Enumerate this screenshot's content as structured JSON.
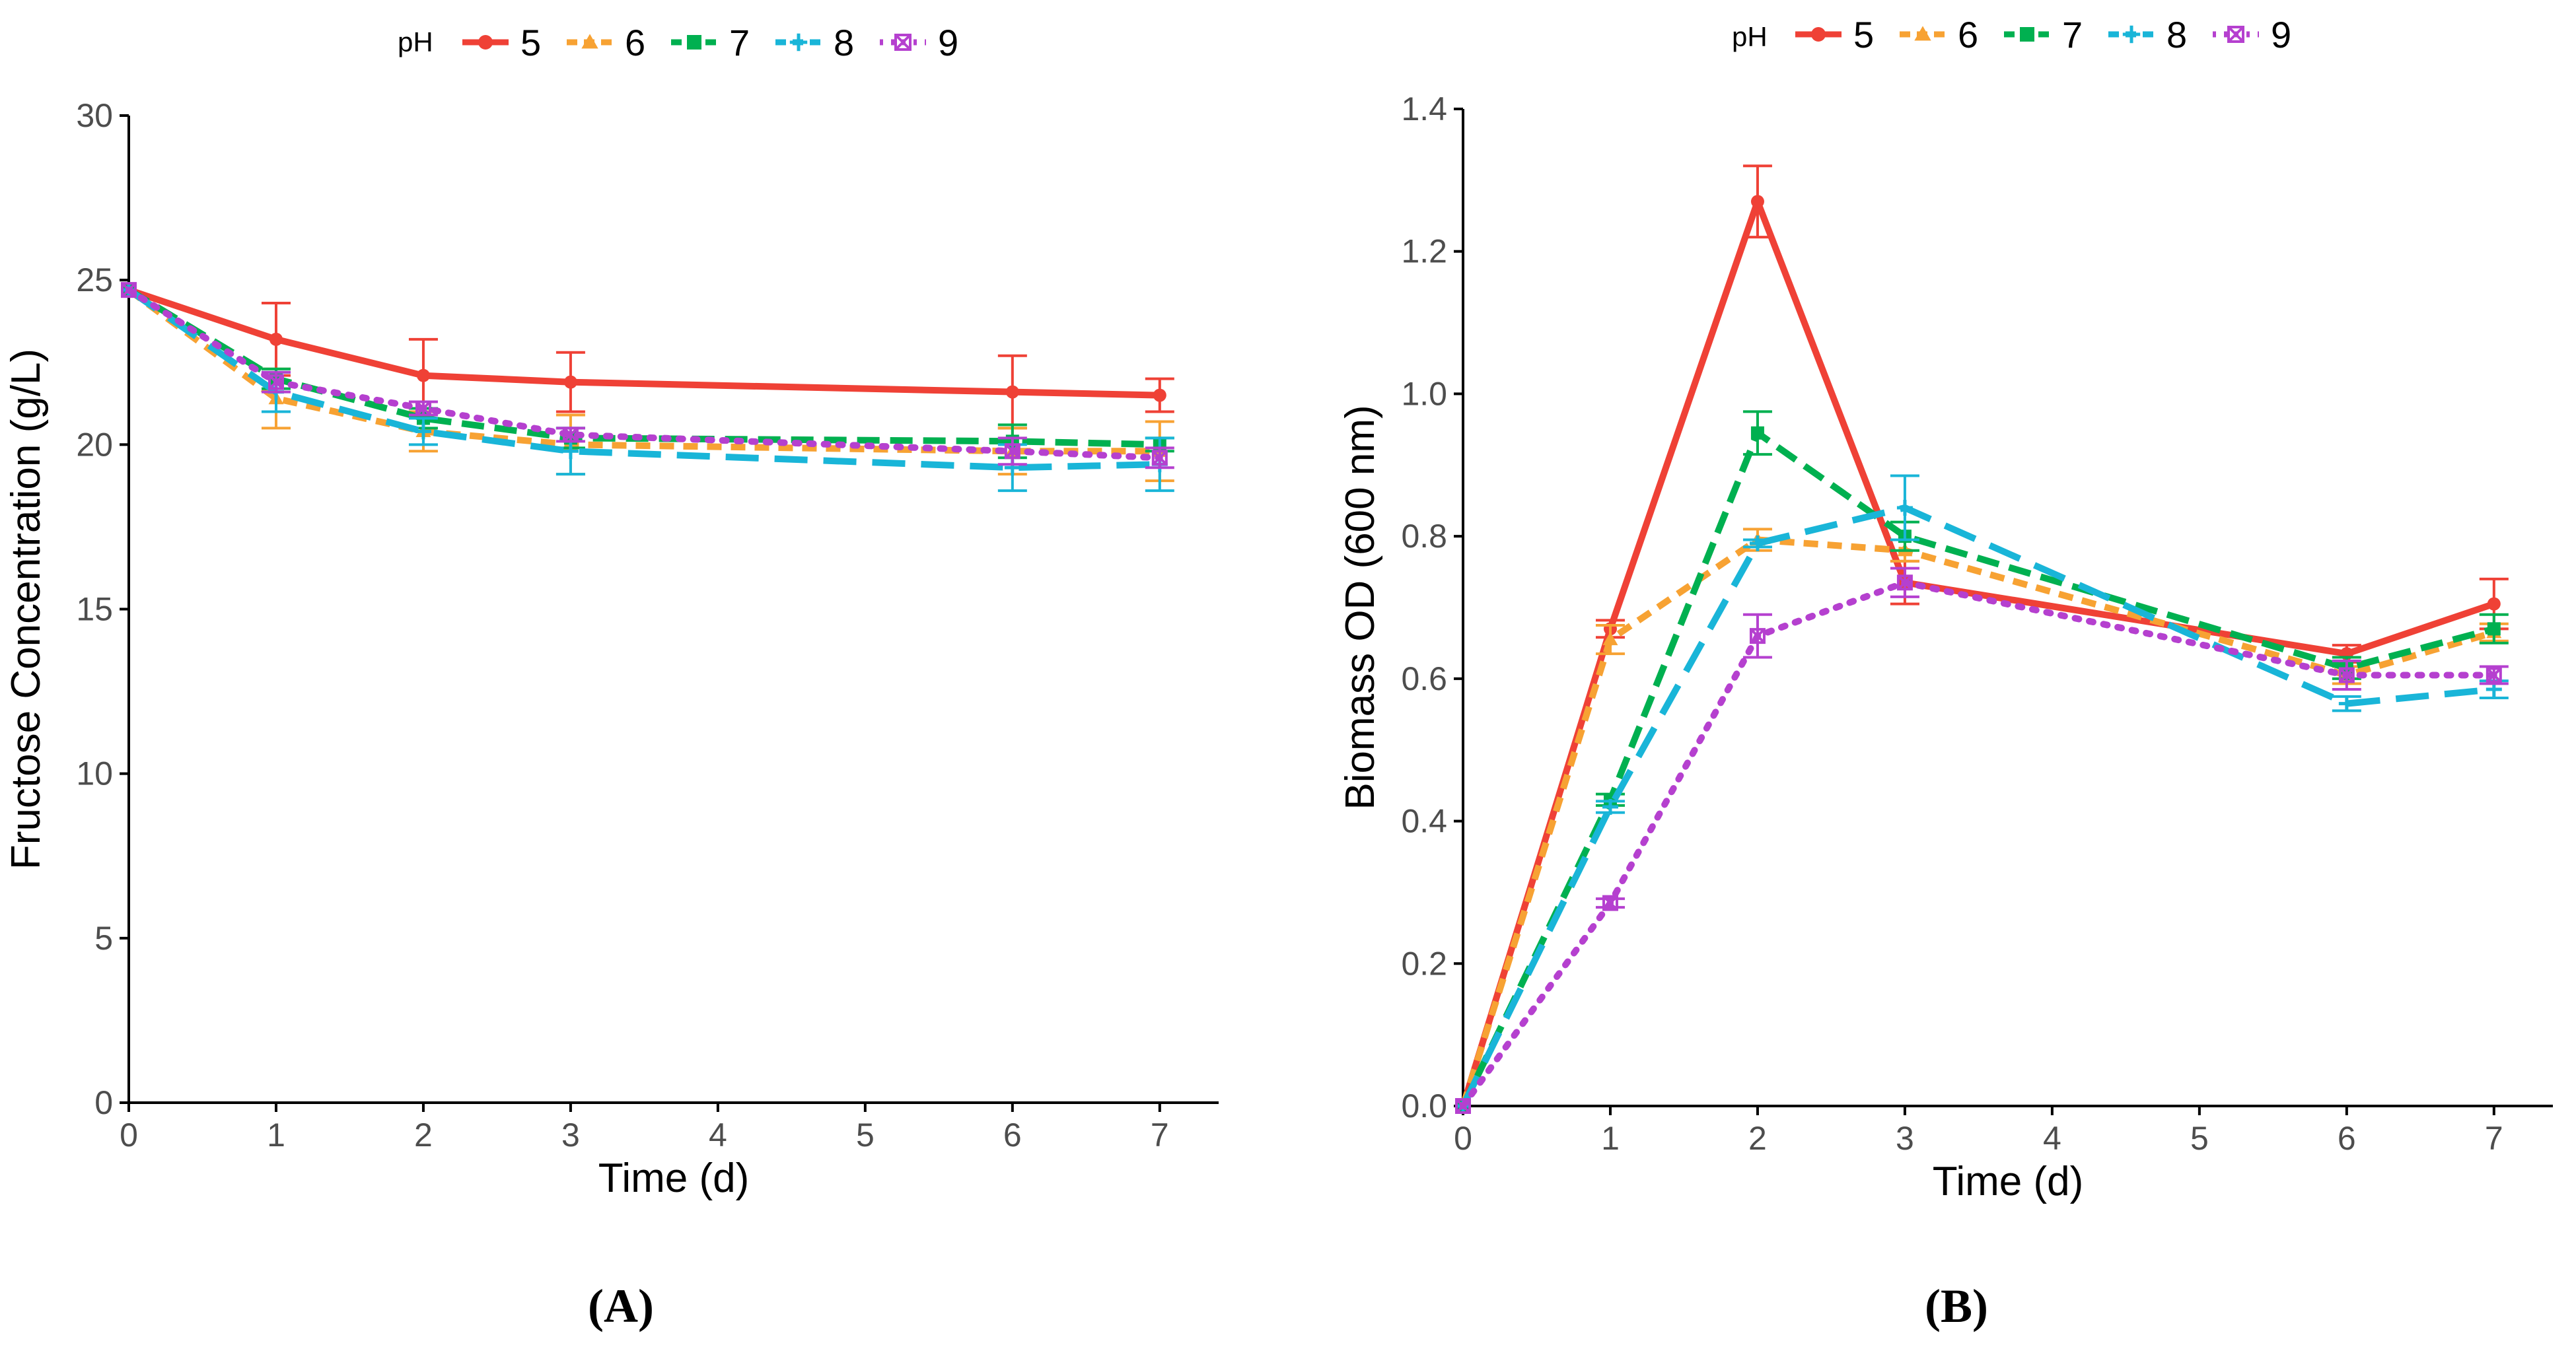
{
  "figure": {
    "panel_labels": [
      "(A)",
      "(B)"
    ]
  },
  "legend": {
    "title": "pH",
    "entries": [
      {
        "label": "5",
        "color": "#EF4136",
        "shape": "circle",
        "dash": "solid"
      },
      {
        "label": "6",
        "color": "#F7A233",
        "shape": "triangle",
        "dash": "short-dash"
      },
      {
        "label": "7",
        "color": "#00B050",
        "shape": "square",
        "dash": "dash"
      },
      {
        "label": "8",
        "color": "#19B5D8",
        "shape": "plus",
        "dash": "long-dash"
      },
      {
        "label": "9",
        "color": "#B540CF",
        "shape": "square-cross",
        "dash": "dotted"
      }
    ]
  },
  "chart_data": [
    {
      "type": "line",
      "panel": "A",
      "title": "",
      "xlabel": "Time (d)",
      "ylabel": "Fructose Concentration (g/L)",
      "xlim": [
        0,
        7.4
      ],
      "ylim": [
        0,
        30
      ],
      "xticks": [
        0,
        1,
        2,
        3,
        4,
        5,
        6,
        7
      ],
      "yticks": [
        0,
        5,
        10,
        15,
        20,
        25,
        30
      ],
      "x": [
        0,
        1,
        2,
        3,
        6,
        7
      ],
      "series": [
        {
          "name": "5",
          "values": [
            24.7,
            23.2,
            22.1,
            21.9,
            21.6,
            21.5
          ],
          "errors": [
            0.0,
            1.1,
            1.1,
            0.9,
            1.1,
            0.5
          ]
        },
        {
          "name": "6",
          "values": [
            24.7,
            21.4,
            20.4,
            20.0,
            19.8,
            19.8
          ],
          "errors": [
            0.0,
            0.9,
            0.6,
            0.9,
            0.7,
            0.9
          ]
        },
        {
          "name": "7",
          "values": [
            24.7,
            22.0,
            20.8,
            20.2,
            20.1,
            20.0
          ],
          "errors": [
            0.0,
            0.3,
            0.3,
            0.3,
            0.5,
            0.2
          ]
        },
        {
          "name": "8",
          "values": [
            24.7,
            21.6,
            20.4,
            19.8,
            19.3,
            19.4
          ],
          "errors": [
            0.0,
            0.6,
            0.4,
            0.7,
            0.7,
            0.8
          ]
        },
        {
          "name": "9",
          "values": [
            24.7,
            21.9,
            21.1,
            20.3,
            19.8,
            19.6
          ],
          "errors": [
            0.0,
            0.3,
            0.2,
            0.2,
            0.4,
            0.3
          ]
        }
      ]
    },
    {
      "type": "line",
      "panel": "B",
      "title": "",
      "xlabel": "Time (d)",
      "ylabel": "Biomass OD (600 nm)",
      "xlim": [
        0,
        7.4
      ],
      "ylim": [
        0,
        1.4
      ],
      "xticks": [
        0,
        1,
        2,
        3,
        4,
        5,
        6,
        7
      ],
      "yticks": [
        0.0,
        0.2,
        0.4,
        0.6,
        0.8,
        1.0,
        1.2,
        1.4
      ],
      "yticklabels": [
        "0.0",
        "0.2",
        "0.4",
        "0.6",
        "0.8",
        "1.0",
        "1.2",
        "1.4"
      ],
      "x": [
        0,
        1,
        2,
        3,
        6,
        7
      ],
      "series": [
        {
          "name": "5",
          "values": [
            0.0,
            0.67,
            1.27,
            0.735,
            0.635,
            0.705
          ],
          "errors": [
            0.0,
            0.012,
            0.05,
            0.03,
            0.012,
            0.035
          ]
        },
        {
          "name": "6",
          "values": [
            0.0,
            0.655,
            0.795,
            0.78,
            0.605,
            0.665
          ],
          "errors": [
            0.0,
            0.02,
            0.015,
            0.015,
            0.012,
            0.012
          ]
        },
        {
          "name": "7",
          "values": [
            0.0,
            0.43,
            0.945,
            0.8,
            0.615,
            0.67
          ],
          "errors": [
            0.0,
            0.008,
            0.03,
            0.02,
            0.015,
            0.02
          ]
        },
        {
          "name": "8",
          "values": [
            0.0,
            0.42,
            0.79,
            0.84,
            0.565,
            0.585
          ],
          "errors": [
            0.0,
            0.008,
            0.005,
            0.045,
            0.01,
            0.012
          ]
        },
        {
          "name": "9",
          "values": [
            0.0,
            0.285,
            0.66,
            0.735,
            0.605,
            0.605
          ],
          "errors": [
            0.0,
            0.006,
            0.03,
            0.02,
            0.02,
            0.012
          ]
        }
      ]
    }
  ]
}
